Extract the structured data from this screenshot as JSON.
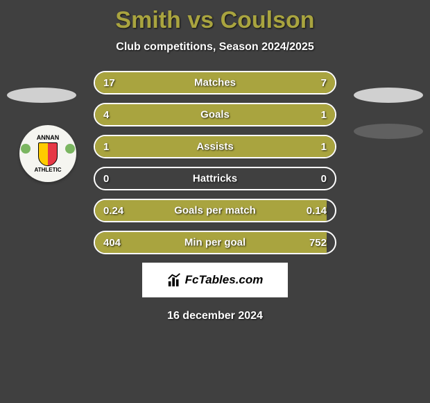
{
  "title": "Smith vs Coulson",
  "subtitle": "Club competitions, Season 2024/2025",
  "footer_date": "16 december 2024",
  "footer_logo_text": "FcTables.com",
  "colors": {
    "background": "#404040",
    "bar_fill": "#a9a43f",
    "bar_border": "#ffffff",
    "title_color": "#a9a43f",
    "text_color": "#ffffff",
    "ellipse_light": "#d0d0d0",
    "ellipse_dark": "#606060",
    "logo_bg": "#ffffff"
  },
  "badge": {
    "top_text": "ANNAN",
    "bottom_text": "ATHLETIC",
    "shield_left": "#ffcc00",
    "shield_right": "#e63946",
    "bg": "#f5f5f0"
  },
  "stats": [
    {
      "label": "Matches",
      "left_value": "17",
      "right_value": "7",
      "left_pct": 70.8,
      "right_pct": 29.2,
      "left_fill": true,
      "right_fill": true
    },
    {
      "label": "Goals",
      "left_value": "4",
      "right_value": "1",
      "left_pct": 80,
      "right_pct": 20,
      "left_fill": true,
      "right_fill": true
    },
    {
      "label": "Assists",
      "left_value": "1",
      "right_value": "1",
      "left_pct": 50,
      "right_pct": 50,
      "left_fill": true,
      "right_fill": true
    },
    {
      "label": "Hattricks",
      "left_value": "0",
      "right_value": "0",
      "left_pct": 50,
      "right_pct": 50,
      "left_fill": false,
      "right_fill": false
    },
    {
      "label": "Goals per match",
      "left_value": "0.24",
      "right_value": "0.14",
      "left_pct": 100,
      "right_pct": 0,
      "left_fill": true,
      "right_fill": false
    },
    {
      "label": "Min per goal",
      "left_value": "404",
      "right_value": "752",
      "left_pct": 100,
      "right_pct": 0,
      "left_fill": true,
      "right_fill": false
    }
  ]
}
